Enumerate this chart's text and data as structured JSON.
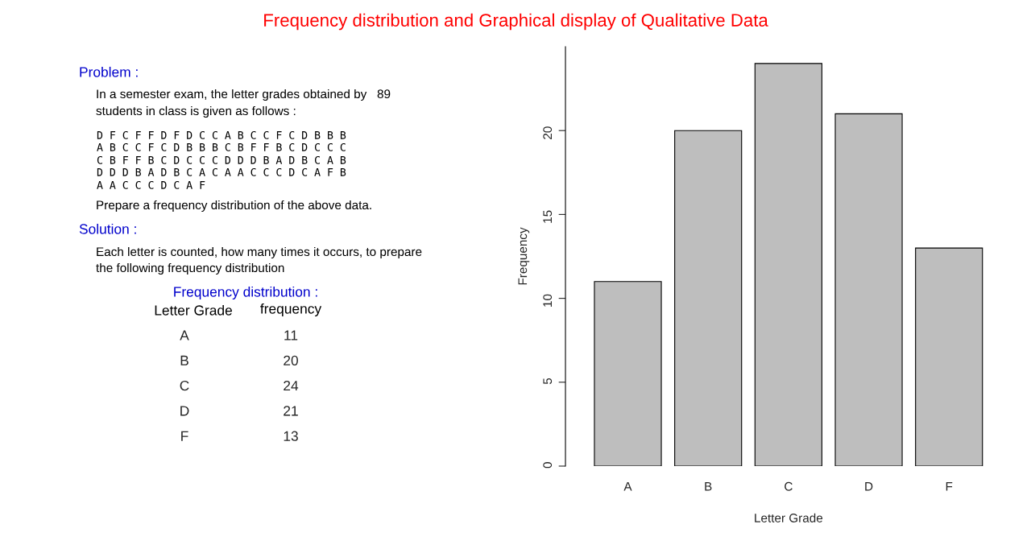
{
  "chart_data": [
    {
      "type": "other",
      "title": "Frequency distribution and Graphical display of Qualitative Data",
      "categories": [
        "A",
        "B",
        "C",
        "D",
        "F"
      ],
      "values": [
        11,
        20,
        24,
        21,
        13
      ],
      "data_labels": true,
      "annotations": [
        "Problem :",
        "In a semester exam, the letter grades obtained by   89",
        "students in class is given as follows :",
        "D F C F F D F D C C A B C C F C D B B B",
        "A B C C F C D B B B C B F F B C D C C C",
        "C B F F B C D C C C D D D B A D B C A B",
        "D D D B A D B C A C A A C C C D C A F B",
        "A A C C C D C A F",
        "Prepare a frequency distribution of the above data.",
        "Solution :",
        "Each letter is counted, how many times it occurs, to prepare",
        "the following frequency distribution",
        "Frequency distribution :",
        "Letter Grade",
        "frequency"
      ]
    },
    {
      "type": "bar",
      "xlabel": "Letter Grade",
      "ylabel": "Frequency",
      "categories": [
        "A",
        "B",
        "C",
        "D",
        "F"
      ],
      "values": [
        11,
        20,
        24,
        21,
        13
      ],
      "color": "#bebebe",
      "ylim": [
        0,
        25
      ],
      "yticks": [
        0,
        5,
        10,
        15,
        20
      ],
      "grid": false
    }
  ]
}
